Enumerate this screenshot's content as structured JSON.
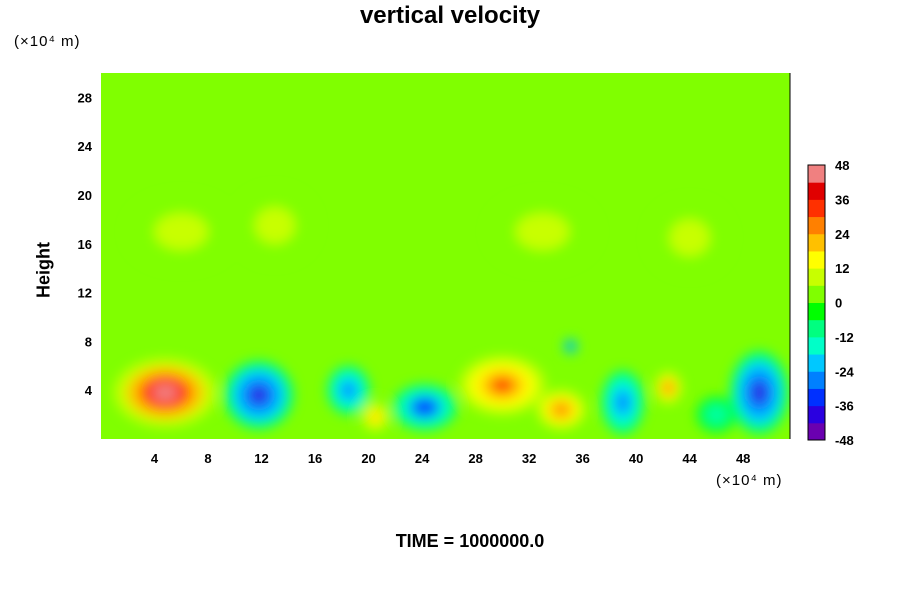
{
  "chart_data": {
    "type": "heatmap",
    "title": "vertical velocity",
    "ylabel": "Height",
    "y_unit": "(×10⁴ m)",
    "x_unit": "(×10⁴ m)",
    "footer": "TIME = 1000000.0",
    "xlim": [
      0,
      51.5
    ],
    "ylim": [
      0,
      30
    ],
    "x_ticks": [
      4,
      8,
      12,
      16,
      20,
      24,
      28,
      32,
      36,
      40,
      44,
      48
    ],
    "y_ticks": [
      4,
      8,
      12,
      16,
      20,
      24,
      28
    ],
    "colorbar": {
      "range": [
        -48,
        48
      ],
      "ticks": [
        48,
        36,
        24,
        12,
        0,
        -12,
        -24,
        -36,
        -48
      ],
      "colors": [
        "#6a00b0",
        "#2a00e0",
        "#0030ff",
        "#0080ff",
        "#00c8ff",
        "#00ffc8",
        "#00ff80",
        "#00ff00",
        "#80ff00",
        "#c8ff00",
        "#ffff00",
        "#ffc000",
        "#ff8000",
        "#ff3000",
        "#e00000",
        "#f08080"
      ]
    },
    "features": [
      {
        "x": 4.8,
        "y": 3.8,
        "rx": 3.8,
        "ry": 2.8,
        "value": 42
      },
      {
        "x": 11.8,
        "y": 3.6,
        "rx": 2.6,
        "ry": 2.8,
        "value": -38
      },
      {
        "x": 18.5,
        "y": 4.0,
        "rx": 1.6,
        "ry": 2.0,
        "value": -30
      },
      {
        "x": 20.5,
        "y": 1.8,
        "rx": 1.2,
        "ry": 1.4,
        "value": 18
      },
      {
        "x": 24.2,
        "y": 2.6,
        "rx": 2.4,
        "ry": 1.9,
        "value": -36
      },
      {
        "x": 30.0,
        "y": 4.4,
        "rx": 3.2,
        "ry": 2.4,
        "value": 30
      },
      {
        "x": 34.4,
        "y": 2.4,
        "rx": 1.8,
        "ry": 1.6,
        "value": 28
      },
      {
        "x": 35.1,
        "y": 7.6,
        "rx": 0.5,
        "ry": 0.6,
        "value": -40
      },
      {
        "x": 39.0,
        "y": 3.0,
        "rx": 1.6,
        "ry": 2.6,
        "value": -26
      },
      {
        "x": 42.4,
        "y": 4.2,
        "rx": 1.0,
        "ry": 1.3,
        "value": 30
      },
      {
        "x": 49.2,
        "y": 3.8,
        "rx": 2.2,
        "ry": 3.4,
        "value": -38
      },
      {
        "x": 46.0,
        "y": 2.0,
        "rx": 1.5,
        "ry": 1.5,
        "value": -14
      },
      {
        "x": 6.0,
        "y": 17.0,
        "rx": 4.0,
        "ry": 3.0,
        "value": 10
      },
      {
        "x": 13.0,
        "y": 17.5,
        "rx": 3.0,
        "ry": 3.0,
        "value": 9
      },
      {
        "x": 33.0,
        "y": 17.0,
        "rx": 4.0,
        "ry": 3.0,
        "value": 9
      },
      {
        "x": 44.0,
        "y": 16.5,
        "rx": 3.0,
        "ry": 3.0,
        "value": 8
      }
    ]
  }
}
